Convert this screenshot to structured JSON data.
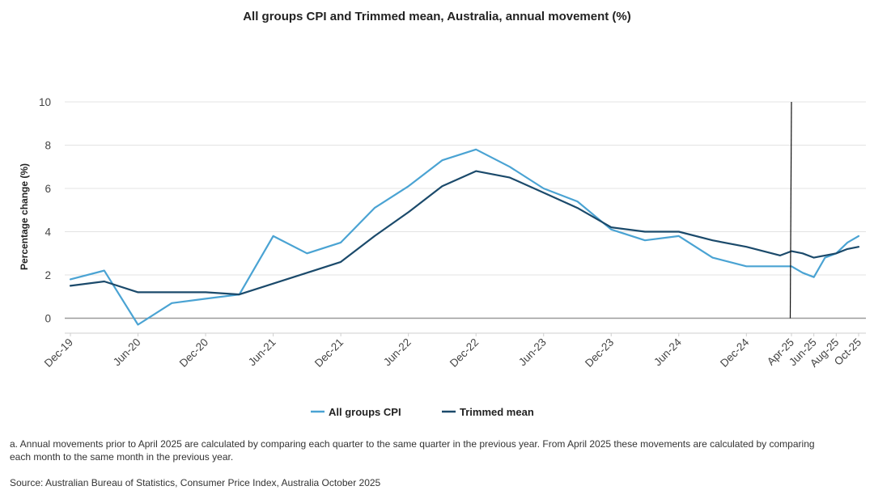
{
  "chart_data": {
    "type": "line",
    "title": "All groups CPI and Trimmed mean, Australia, annual movement (%)",
    "ylabel": "Percentage change (%)",
    "xlabel": "",
    "ylim": [
      -0.7,
      10
    ],
    "yticks": [
      0,
      2,
      4,
      6,
      8,
      10
    ],
    "grid": true,
    "legend_position": "bottom",
    "x_ticks": [
      "Dec-19",
      "Jun-20",
      "Dec-20",
      "Jun-21",
      "Dec-21",
      "Jun-22",
      "Dec-22",
      "Jun-23",
      "Dec-23",
      "Jun-24",
      "Dec-24",
      "Apr-25",
      "Jun-25",
      "Aug-25",
      "Oct-25"
    ],
    "x": [
      "Dec-19",
      "Mar-20",
      "Jun-20",
      "Sep-20",
      "Dec-20",
      "Mar-21",
      "Jun-21",
      "Sep-21",
      "Dec-21",
      "Mar-22",
      "Jun-22",
      "Sep-22",
      "Dec-22",
      "Mar-23",
      "Jun-23",
      "Sep-23",
      "Dec-23",
      "Mar-24",
      "Jun-24",
      "Sep-24",
      "Dec-24",
      "Mar-25",
      "Apr-25",
      "May-25",
      "Jun-25",
      "Jul-25",
      "Aug-25",
      "Sep-25",
      "Oct-25"
    ],
    "series": [
      {
        "name": "All groups CPI",
        "color": "#4aa3d3",
        "values": [
          1.8,
          2.2,
          -0.3,
          0.7,
          0.9,
          1.1,
          3.8,
          3.0,
          3.5,
          5.1,
          6.1,
          7.3,
          7.8,
          7.0,
          6.0,
          5.4,
          4.1,
          3.6,
          3.8,
          2.8,
          2.4,
          2.4,
          2.4,
          2.1,
          1.9,
          2.8,
          3.0,
          3.5,
          3.8
        ]
      },
      {
        "name": "Trimmed mean",
        "color": "#1b4a6b",
        "values": [
          1.5,
          1.7,
          1.2,
          1.2,
          1.2,
          1.1,
          1.6,
          2.1,
          2.6,
          3.8,
          4.9,
          6.1,
          6.8,
          6.5,
          5.8,
          5.1,
          4.2,
          4.0,
          4.0,
          3.6,
          3.3,
          2.9,
          3.1,
          3.0,
          2.8,
          2.9,
          3.0,
          3.2,
          3.3
        ]
      }
    ],
    "marker_line_at": "Apr-25"
  },
  "footnote": "a. Annual movements prior to April 2025 are calculated by comparing each quarter to the same quarter in the previous year.  From April 2025 these movements are calculated by comparing each month to the same month in the previous year.",
  "source": "Source: Australian Bureau of Statistics, Consumer Price Index, Australia October 2025"
}
